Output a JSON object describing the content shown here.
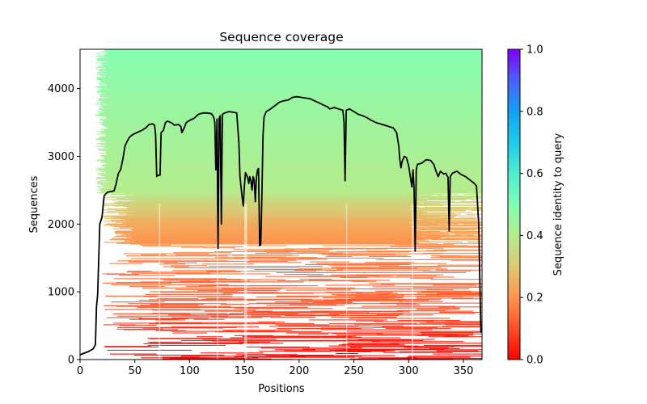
{
  "chart_data": {
    "type": "heatmap",
    "title": "Sequence coverage",
    "xlabel": "Positions",
    "ylabel": "Sequences",
    "xlim": [
      0,
      367
    ],
    "ylim": [
      0,
      4580
    ],
    "xticks": [
      0,
      50,
      100,
      150,
      200,
      250,
      300,
      350
    ],
    "yticks": [
      0,
      1000,
      2000,
      3000,
      4000
    ],
    "grid": false,
    "colorbar": {
      "label": "Sequence identity to query",
      "colormap": "rainbow_r",
      "range": [
        0.0,
        1.0
      ],
      "ticks": [
        "0.0",
        "0.2",
        "0.4",
        "0.6",
        "0.8",
        "1.0"
      ],
      "stops": [
        {
          "value": 0.0,
          "color": "#ff0000"
        },
        {
          "value": 0.1,
          "color": "#ff4f28"
        },
        {
          "value": 0.2,
          "color": "#ff964f"
        },
        {
          "value": 0.3,
          "color": "#dcc975"
        },
        {
          "value": 0.4,
          "color": "#b4ec8d"
        },
        {
          "value": 0.5,
          "color": "#80ffb4"
        },
        {
          "value": 0.6,
          "color": "#4eecd0"
        },
        {
          "value": 0.7,
          "color": "#1ccde8"
        },
        {
          "value": 0.8,
          "color": "#15a1f3"
        },
        {
          "value": 0.9,
          "color": "#4a61fa"
        },
        {
          "value": 1.0,
          "color": "#8000ff"
        }
      ]
    },
    "identity_by_sequence_row": [
      {
        "row": 0,
        "identity": 0.0
      },
      {
        "row": 700,
        "identity": 0.1
      },
      {
        "row": 1500,
        "identity": 0.16
      },
      {
        "row": 2000,
        "identity": 0.24
      },
      {
        "row": 2300,
        "identity": 0.33
      },
      {
        "row": 2500,
        "identity": 0.4
      },
      {
        "row": 3500,
        "identity": 0.44
      },
      {
        "row": 4580,
        "identity": 0.49
      }
    ],
    "coverage_line": {
      "name": "coverage",
      "color": "#000000",
      "points": [
        [
          0,
          70
        ],
        [
          4,
          95
        ],
        [
          8,
          120
        ],
        [
          12,
          160
        ],
        [
          14,
          220
        ],
        [
          15,
          780
        ],
        [
          16,
          950
        ],
        [
          18,
          2000
        ],
        [
          20,
          2100
        ],
        [
          22,
          2420
        ],
        [
          25,
          2470
        ],
        [
          28,
          2480
        ],
        [
          31,
          2490
        ],
        [
          33,
          2600
        ],
        [
          35,
          2750
        ],
        [
          37,
          2800
        ],
        [
          39,
          2950
        ],
        [
          41,
          3150
        ],
        [
          43,
          3220
        ],
        [
          45,
          3280
        ],
        [
          48,
          3320
        ],
        [
          52,
          3350
        ],
        [
          56,
          3380
        ],
        [
          60,
          3420
        ],
        [
          63,
          3470
        ],
        [
          66,
          3480
        ],
        [
          68,
          3460
        ],
        [
          69,
          3320
        ],
        [
          70,
          2700
        ],
        [
          71,
          2720
        ],
        [
          73,
          2720
        ],
        [
          74,
          3350
        ],
        [
          76,
          3380
        ],
        [
          78,
          3500
        ],
        [
          80,
          3520
        ],
        [
          84,
          3490
        ],
        [
          86,
          3460
        ],
        [
          90,
          3470
        ],
        [
          92,
          3440
        ],
        [
          93,
          3350
        ],
        [
          95,
          3420
        ],
        [
          97,
          3500
        ],
        [
          100,
          3530
        ],
        [
          104,
          3560
        ],
        [
          108,
          3620
        ],
        [
          112,
          3640
        ],
        [
          116,
          3640
        ],
        [
          120,
          3630
        ],
        [
          122,
          3580
        ],
        [
          123,
          3500
        ],
        [
          124,
          2800
        ],
        [
          125,
          3550
        ],
        [
          126,
          1640
        ],
        [
          127,
          3560
        ],
        [
          128,
          3600
        ],
        [
          129,
          2000
        ],
        [
          130,
          3620
        ],
        [
          132,
          3640
        ],
        [
          136,
          3660
        ],
        [
          140,
          3650
        ],
        [
          143,
          3640
        ],
        [
          145,
          3200
        ],
        [
          146,
          2700
        ],
        [
          148,
          2400
        ],
        [
          149,
          2270
        ],
        [
          150,
          2550
        ],
        [
          151,
          2760
        ],
        [
          153,
          2690
        ],
        [
          154,
          2600
        ],
        [
          155,
          2700
        ],
        [
          156,
          2640
        ],
        [
          157,
          2500
        ],
        [
          158,
          2700
        ],
        [
          159,
          2650
        ],
        [
          160,
          2330
        ],
        [
          161,
          2680
        ],
        [
          162,
          2800
        ],
        [
          163,
          2820
        ],
        [
          164,
          1680
        ],
        [
          165,
          1700
        ],
        [
          166,
          2400
        ],
        [
          167,
          3300
        ],
        [
          168,
          3580
        ],
        [
          170,
          3660
        ],
        [
          174,
          3700
        ],
        [
          178,
          3750
        ],
        [
          182,
          3800
        ],
        [
          186,
          3820
        ],
        [
          190,
          3830
        ],
        [
          194,
          3870
        ],
        [
          198,
          3880
        ],
        [
          202,
          3870
        ],
        [
          206,
          3860
        ],
        [
          210,
          3850
        ],
        [
          214,
          3820
        ],
        [
          218,
          3790
        ],
        [
          222,
          3760
        ],
        [
          226,
          3730
        ],
        [
          228,
          3700
        ],
        [
          232,
          3720
        ],
        [
          236,
          3700
        ],
        [
          240,
          3680
        ],
        [
          241,
          3500
        ],
        [
          242,
          2640
        ],
        [
          243,
          3680
        ],
        [
          246,
          3700
        ],
        [
          250,
          3660
        ],
        [
          254,
          3620
        ],
        [
          258,
          3600
        ],
        [
          262,
          3570
        ],
        [
          266,
          3530
        ],
        [
          270,
          3500
        ],
        [
          274,
          3480
        ],
        [
          278,
          3460
        ],
        [
          282,
          3440
        ],
        [
          286,
          3420
        ],
        [
          289,
          3350
        ],
        [
          291,
          3150
        ],
        [
          292,
          2950
        ],
        [
          293,
          2830
        ],
        [
          294,
          2920
        ],
        [
          296,
          3000
        ],
        [
          298,
          2980
        ],
        [
          300,
          2860
        ],
        [
          302,
          2650
        ],
        [
          303,
          2550
        ],
        [
          304,
          2800
        ],
        [
          305,
          2520
        ],
        [
          306,
          1600
        ],
        [
          307,
          2800
        ],
        [
          308,
          2880
        ],
        [
          312,
          2900
        ],
        [
          316,
          2950
        ],
        [
          320,
          2940
        ],
        [
          323,
          2880
        ],
        [
          325,
          2780
        ],
        [
          327,
          2700
        ],
        [
          329,
          2780
        ],
        [
          332,
          2740
        ],
        [
          334,
          2750
        ],
        [
          336,
          2690
        ],
        [
          337,
          1900
        ],
        [
          338,
          2700
        ],
        [
          340,
          2750
        ],
        [
          344,
          2780
        ],
        [
          348,
          2730
        ],
        [
          352,
          2700
        ],
        [
          356,
          2650
        ],
        [
          360,
          2600
        ],
        [
          362,
          2560
        ],
        [
          364,
          2000
        ],
        [
          366,
          400
        ]
      ]
    }
  }
}
